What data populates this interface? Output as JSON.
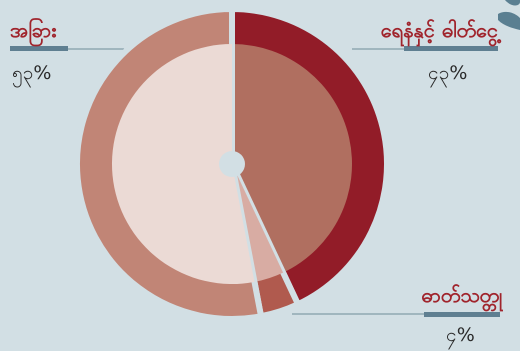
{
  "chart_data": {
    "type": "pie",
    "title": "",
    "slices": [
      {
        "label": "ရေနံနှင့် ဓါတ်ငွေ့",
        "display": "၄၃%",
        "value": 43,
        "outer_color": "#921c28",
        "inner_color": "#b06f60"
      },
      {
        "label": "ဓာတ်သတ္တု",
        "display": "၄%",
        "value": 4,
        "outer_color": "#b05a4e",
        "inner_color": "#d8aca3"
      },
      {
        "label": "အခြား",
        "display": "၅၃%",
        "value": 53,
        "outer_color": "#c18576",
        "inner_color": "#ebdad5"
      }
    ],
    "legend": "labels at slice ends"
  }
}
